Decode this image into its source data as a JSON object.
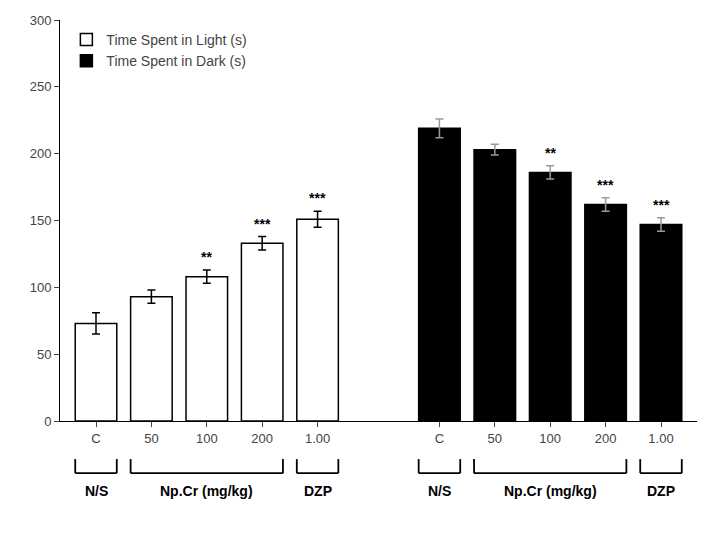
{
  "chart_data": {
    "type": "bar",
    "categories": [
      "C",
      "50",
      "100",
      "200",
      "1.00",
      "C",
      "50",
      "100",
      "200",
      "1.00"
    ],
    "series": [
      {
        "name": "Time Spent in Light (s)",
        "color": "#ffffff",
        "values": [
          73,
          93,
          108,
          133,
          151,
          null,
          null,
          null,
          null,
          null
        ],
        "errors": [
          8,
          5,
          5,
          5,
          6,
          null,
          null,
          null,
          null,
          null
        ],
        "annotations": [
          null,
          null,
          "**",
          "***",
          "***",
          null,
          null,
          null,
          null,
          null
        ]
      },
      {
        "name": "Time Spent in Dark (s)",
        "color": "#000000",
        "values": [
          null,
          null,
          null,
          null,
          null,
          219,
          203,
          186,
          162,
          147
        ],
        "errors": [
          null,
          null,
          null,
          null,
          null,
          7,
          4,
          5,
          5,
          5
        ],
        "annotations": [
          null,
          null,
          null,
          null,
          null,
          null,
          null,
          "**",
          "***",
          "***"
        ]
      }
    ],
    "brackets": [
      {
        "label": "N/S",
        "from": 0,
        "to": 0
      },
      {
        "label": "Np.Cr (mg/kg)",
        "from": 1,
        "to": 3
      },
      {
        "label": "DZP",
        "from": 4,
        "to": 4
      },
      {
        "label": "N/S",
        "from": 5,
        "to": 5
      },
      {
        "label": "Np.Cr (mg/kg)",
        "from": 6,
        "to": 8
      },
      {
        "label": "DZP",
        "from": 9,
        "to": 9
      }
    ],
    "ylim": [
      0,
      300
    ],
    "yticks": [
      0,
      50,
      100,
      150,
      200,
      250,
      300
    ],
    "grid": false,
    "legend": "upper left"
  }
}
